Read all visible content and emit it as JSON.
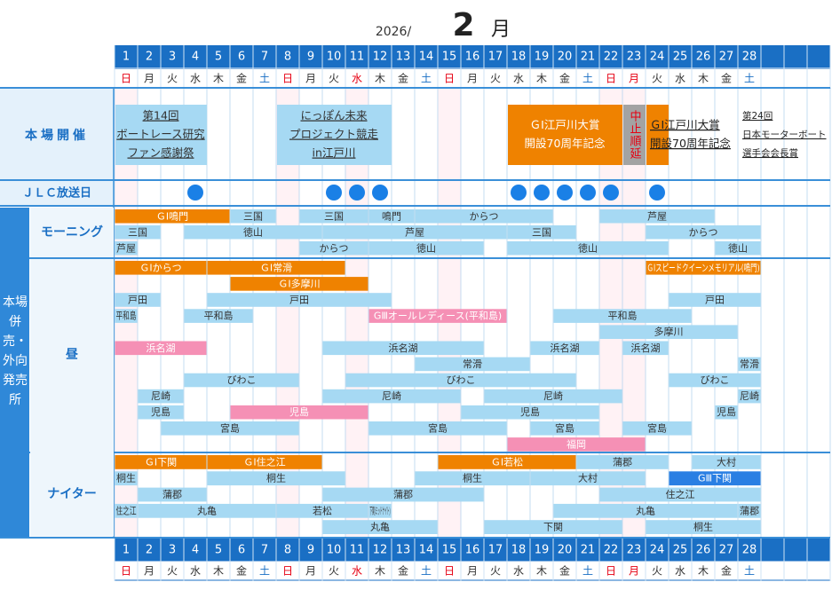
{
  "header": {
    "year": "2026/",
    "month": "2",
    "month_unit": "月"
  },
  "calendar": {
    "days": [
      1,
      2,
      3,
      4,
      5,
      6,
      7,
      8,
      9,
      10,
      11,
      12,
      13,
      14,
      15,
      16,
      17,
      18,
      19,
      20,
      21,
      22,
      23,
      24,
      25,
      26,
      27,
      28
    ],
    "weekdays": [
      "日",
      "月",
      "火",
      "水",
      "木",
      "金",
      "土",
      "日",
      "月",
      "火",
      "水",
      "木",
      "金",
      "土",
      "日",
      "月",
      "火",
      "水",
      "木",
      "金",
      "土",
      "日",
      "月",
      "火",
      "水",
      "木",
      "金",
      "土"
    ],
    "red_days": [
      1,
      8,
      11,
      15,
      22,
      23
    ],
    "blue_days": [
      7,
      14,
      21,
      28
    ]
  },
  "styles": {
    "blue": {
      "fill": "#a6d9f3",
      "text": "#333333"
    },
    "orange": {
      "fill": "#ef8200",
      "text": "#ffffff"
    },
    "pink": {
      "fill": "#f590b5",
      "text": "#ffffff"
    },
    "navy": {
      "fill": "#2a7fe3",
      "text": "#ffffff"
    },
    "gray": {
      "fill": "#a3a3a3",
      "text": "#e60012"
    },
    "orange_dark": {
      "fill": "#ef8200",
      "text": "#222222"
    },
    "plain": {
      "fill": "none",
      "text": "#222222"
    }
  },
  "main_events": {
    "label": "本場開催",
    "events": [
      {
        "start": 1,
        "end": 4,
        "style": "blue",
        "lines": [
          "第14回",
          "ボートレース研究",
          "ファン感謝祭"
        ]
      },
      {
        "start": 8,
        "end": 12,
        "style": "blue",
        "lines": [
          "にっぽん未来",
          "プロジェクト競走",
          "in江戸川"
        ]
      },
      {
        "start": 18,
        "end": 22,
        "style": "orange",
        "lines": [
          "ＧⅠ江戸川大賞",
          "開設70周年記念"
        ]
      },
      {
        "start": 23,
        "end": 23,
        "style": "gray",
        "vertical": true,
        "lines": [
          "中止順延"
        ]
      },
      {
        "start": 24,
        "end": 24,
        "style": "orange_dark",
        "align": "left",
        "lines": [
          "ＧⅠ江戸川大賞",
          "開設70周年記念"
        ]
      },
      {
        "start": 28,
        "end": 28,
        "style": "plain",
        "align": "left",
        "lines": [
          "第24回",
          "日本モーターボート",
          "選手会会長賞"
        ]
      }
    ]
  },
  "jlc": {
    "label": "ＪＬＣ放送日",
    "days": [
      4,
      10,
      11,
      12,
      18,
      19,
      20,
      21,
      22,
      24
    ]
  },
  "outlets": {
    "label": "本場併売・外向発売所",
    "sections": [
      {
        "label": "モーニング",
        "rows": [
          [
            {
              "start": 1,
              "end": 5,
              "label": "ＧⅠ鳴門",
              "style": "orange"
            },
            {
              "start": 6,
              "end": 7,
              "label": "三国",
              "style": "blue"
            },
            {
              "start": 9,
              "end": 11,
              "label": "三国",
              "style": "blue"
            },
            {
              "start": 12,
              "end": 13,
              "label": "鳴門",
              "style": "blue"
            },
            {
              "start": 14,
              "end": 19,
              "label": "からつ",
              "style": "blue"
            },
            {
              "start": 22,
              "end": 26,
              "label": "芦屋",
              "style": "blue"
            }
          ],
          [
            {
              "start": 1,
              "end": 2,
              "label": "三国",
              "style": "blue"
            },
            {
              "start": 4,
              "end": 9,
              "label": "徳山",
              "style": "blue"
            },
            {
              "start": 10,
              "end": 17,
              "label": "芦屋",
              "style": "blue"
            },
            {
              "start": 18,
              "end": 20,
              "label": "三国",
              "style": "blue"
            },
            {
              "start": 24,
              "end": 28,
              "label": "からつ",
              "style": "blue"
            }
          ],
          [
            {
              "start": 1,
              "end": 1,
              "label": "芦屋",
              "style": "blue"
            },
            {
              "start": 9,
              "end": 11,
              "label": "からつ",
              "style": "blue"
            },
            {
              "start": 12,
              "end": 16,
              "label": "徳山",
              "style": "blue"
            },
            {
              "start": 18,
              "end": 24,
              "label": "徳山",
              "style": "blue"
            },
            {
              "start": 27,
              "end": 28,
              "label": "徳山",
              "style": "blue"
            }
          ]
        ]
      },
      {
        "label": "昼",
        "rows": [
          [
            {
              "start": 1,
              "end": 4,
              "label": "ＧⅠからつ",
              "style": "orange"
            },
            {
              "start": 5,
              "end": 10,
              "label": "ＧⅠ常滑",
              "style": "orange"
            },
            {
              "start": 24,
              "end": 28,
              "label": "ＧⅠスピードクイーンメモリアル(鳴門)",
              "style": "orange"
            }
          ],
          [
            {
              "start": 6,
              "end": 11,
              "label": "ＧⅠ多摩川",
              "style": "orange"
            }
          ],
          [
            {
              "start": 1,
              "end": 2,
              "label": "戸田",
              "style": "blue"
            },
            {
              "start": 5,
              "end": 12,
              "label": "戸田",
              "style": "blue"
            },
            {
              "start": 25,
              "end": 28,
              "label": "戸田",
              "style": "blue"
            }
          ],
          [
            {
              "start": 1,
              "end": 1,
              "label": "平和島",
              "style": "blue"
            },
            {
              "start": 4,
              "end": 6,
              "label": "平和島",
              "style": "blue"
            },
            {
              "start": 12,
              "end": 17,
              "label": "GⅢオールレディース(平和島)",
              "style": "pink"
            },
            {
              "start": 20,
              "end": 25,
              "label": "平和島",
              "style": "blue"
            }
          ],
          [
            {
              "start": 22,
              "end": 27,
              "label": "多摩川",
              "style": "blue"
            }
          ],
          [
            {
              "start": 1,
              "end": 4,
              "label": "浜名湖",
              "style": "pink"
            },
            {
              "start": 10,
              "end": 16,
              "label": "浜名湖",
              "style": "blue"
            },
            {
              "start": 19,
              "end": 21,
              "label": "浜名湖",
              "style": "blue"
            },
            {
              "start": 23,
              "end": 24,
              "label": "浜名湖",
              "style": "blue"
            }
          ],
          [
            {
              "start": 14,
              "end": 18,
              "label": "常滑",
              "style": "blue"
            },
            {
              "start": 28,
              "end": 28,
              "label": "常滑",
              "style": "blue"
            }
          ],
          [
            {
              "start": 4,
              "end": 8,
              "label": "びわこ",
              "style": "blue"
            },
            {
              "start": 11,
              "end": 20,
              "label": "びわこ",
              "style": "blue"
            },
            {
              "start": 25,
              "end": 28,
              "label": "びわこ",
              "style": "blue"
            }
          ],
          [
            {
              "start": 2,
              "end": 3,
              "label": "尼崎",
              "style": "blue"
            },
            {
              "start": 10,
              "end": 15,
              "label": "尼崎",
              "style": "blue"
            },
            {
              "start": 17,
              "end": 22,
              "label": "尼崎",
              "style": "blue"
            },
            {
              "start": 28,
              "end": 28,
              "label": "尼崎",
              "style": "blue"
            }
          ],
          [
            {
              "start": 2,
              "end": 3,
              "label": "児島",
              "style": "blue"
            },
            {
              "start": 6,
              "end": 11,
              "label": "児島",
              "style": "pink"
            },
            {
              "start": 16,
              "end": 21,
              "label": "児島",
              "style": "blue"
            },
            {
              "start": 27,
              "end": 27,
              "label": "児島",
              "style": "blue"
            }
          ],
          [
            {
              "start": 3,
              "end": 8,
              "label": "宮島",
              "style": "blue"
            },
            {
              "start": 12,
              "end": 17,
              "label": "宮島",
              "style": "blue"
            },
            {
              "start": 19,
              "end": 21,
              "label": "宮島",
              "style": "blue"
            },
            {
              "start": 23,
              "end": 25,
              "label": "宮島",
              "style": "blue"
            }
          ],
          [
            {
              "start": 18,
              "end": 23,
              "label": "福岡",
              "style": "pink"
            }
          ]
        ]
      },
      {
        "label": "ナイター",
        "rows": [
          [
            {
              "start": 1,
              "end": 4,
              "label": "ＧⅠ下関",
              "style": "orange"
            },
            {
              "start": 5,
              "end": 9,
              "label": "ＧⅠ住之江",
              "style": "orange"
            },
            {
              "start": 15,
              "end": 20,
              "label": "ＧⅠ若松",
              "style": "orange"
            },
            {
              "start": 21,
              "end": 24,
              "label": "蒲郡",
              "style": "blue"
            },
            {
              "start": 26,
              "end": 28,
              "label": "大村",
              "style": "blue"
            }
          ],
          [
            {
              "start": 1,
              "end": 1,
              "label": "桐生",
              "style": "blue"
            },
            {
              "start": 5,
              "end": 10,
              "label": "桐生",
              "style": "blue"
            },
            {
              "start": 14,
              "end": 18,
              "label": "桐生",
              "style": "blue"
            },
            {
              "start": 19,
              "end": 23,
              "label": "大村",
              "style": "blue"
            },
            {
              "start": 25,
              "end": 28,
              "label": "GⅢ下関",
              "style": "navy"
            }
          ],
          [
            {
              "start": 2,
              "end": 4,
              "label": "蒲郡",
              "style": "blue"
            },
            {
              "start": 10,
              "end": 16,
              "label": "蒲郡",
              "style": "blue"
            },
            {
              "start": 22,
              "end": 28,
              "label": "住之江",
              "style": "blue"
            }
          ],
          [
            {
              "start": 1,
              "end": 1,
              "label": "住之江",
              "style": "blue"
            },
            {
              "start": 2,
              "end": 7,
              "label": "丸亀",
              "style": "blue"
            },
            {
              "start": 8,
              "end": 11,
              "label": "若松",
              "style": "blue"
            },
            {
              "start": 12,
              "end": 12,
              "label": "下関(ミッドナイト)",
              "style": "blue"
            },
            {
              "start": 20,
              "end": 27,
              "label": "丸亀",
              "style": "blue"
            },
            {
              "start": 28,
              "end": 28,
              "label": "蒲郡",
              "style": "blue"
            }
          ],
          [
            {
              "start": 10,
              "end": 14,
              "label": "丸亀",
              "style": "blue"
            },
            {
              "start": 17,
              "end": 22,
              "label": "下関",
              "style": "blue"
            },
            {
              "start": 24,
              "end": 28,
              "label": "桐生",
              "style": "blue"
            }
          ]
        ]
      }
    ]
  }
}
